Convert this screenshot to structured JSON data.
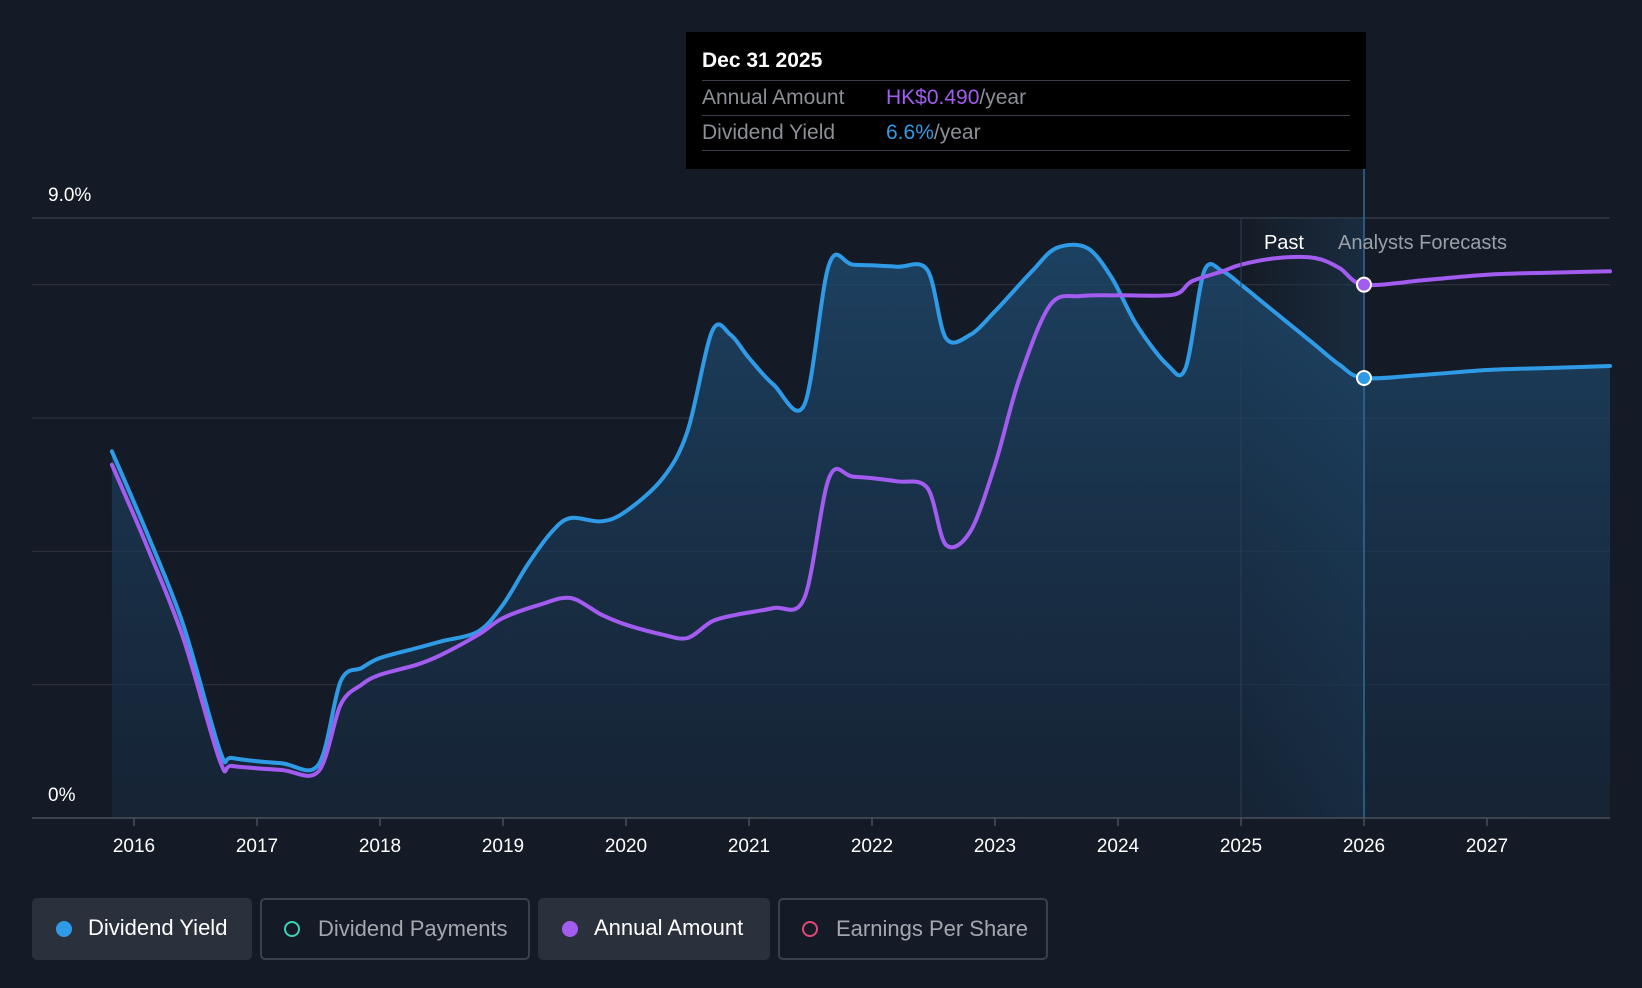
{
  "tooltip": {
    "date": "Dec 31 2025",
    "rows": [
      {
        "label": "Annual Amount",
        "value": "HK$0.490",
        "unit": "/year"
      },
      {
        "label": "Dividend Yield",
        "value": "6.6%",
        "unit": "/year"
      }
    ]
  },
  "legend": [
    {
      "label": "Dividend Yield",
      "color": "#2f9be6",
      "active": true
    },
    {
      "label": "Dividend Payments",
      "color": "#3fd1b8",
      "active": false
    },
    {
      "label": "Annual Amount",
      "color": "#a35cf0",
      "active": true
    },
    {
      "label": "Earnings Per Share",
      "color": "#e0487a",
      "active": false
    }
  ],
  "colors": {
    "background": "#151b26",
    "yield": "#2f9be6",
    "annual_amount": "#a35cf0",
    "grid": "#2c323d"
  },
  "chart_data": {
    "type": "line",
    "y_tick_labels": [
      "9.0%",
      "0%"
    ],
    "ylim": [
      0,
      9.0
    ],
    "y_gridlines": [
      0,
      2,
      4,
      6,
      8,
      9
    ],
    "x_tick_labels": [
      "2016",
      "2017",
      "2018",
      "2019",
      "2020",
      "2021",
      "2022",
      "2023",
      "2024",
      "2025",
      "2026",
      "2027"
    ],
    "xlim": [
      2015.3,
      2028.0
    ],
    "region_labels": {
      "past": "Past",
      "forecast": "Analysts Forecasts"
    },
    "forecast_start": 2026.0,
    "highlight_date": 2026.0,
    "grid": true,
    "series": [
      {
        "name": "Dividend Yield",
        "unit": "%",
        "points": [
          [
            2015.82,
            5.5
          ],
          [
            2016.1,
            4.3
          ],
          [
            2016.4,
            2.9
          ],
          [
            2016.7,
            1.0
          ],
          [
            2016.8,
            0.9
          ],
          [
            2017.2,
            0.82
          ],
          [
            2017.5,
            0.8
          ],
          [
            2017.68,
            2.05
          ],
          [
            2017.85,
            2.25
          ],
          [
            2018.0,
            2.4
          ],
          [
            2018.3,
            2.55
          ],
          [
            2018.5,
            2.65
          ],
          [
            2018.8,
            2.8
          ],
          [
            2019.0,
            3.2
          ],
          [
            2019.2,
            3.8
          ],
          [
            2019.4,
            4.3
          ],
          [
            2019.55,
            4.5
          ],
          [
            2019.8,
            4.45
          ],
          [
            2020.0,
            4.6
          ],
          [
            2020.3,
            5.1
          ],
          [
            2020.5,
            5.8
          ],
          [
            2020.7,
            7.3
          ],
          [
            2020.85,
            7.25
          ],
          [
            2021.0,
            6.9
          ],
          [
            2021.2,
            6.5
          ],
          [
            2021.45,
            6.2
          ],
          [
            2021.65,
            8.3
          ],
          [
            2021.85,
            8.3
          ],
          [
            2022.2,
            8.27
          ],
          [
            2022.45,
            8.22
          ],
          [
            2022.6,
            7.2
          ],
          [
            2022.8,
            7.25
          ],
          [
            2023.0,
            7.6
          ],
          [
            2023.3,
            8.2
          ],
          [
            2023.5,
            8.55
          ],
          [
            2023.75,
            8.55
          ],
          [
            2023.95,
            8.1
          ],
          [
            2024.15,
            7.4
          ],
          [
            2024.4,
            6.8
          ],
          [
            2024.55,
            6.75
          ],
          [
            2024.7,
            8.2
          ],
          [
            2024.85,
            8.2
          ],
          [
            2025.0,
            8.0
          ],
          [
            2025.2,
            7.7
          ],
          [
            2025.4,
            7.4
          ],
          [
            2025.6,
            7.1
          ],
          [
            2025.8,
            6.8
          ],
          [
            2026.0,
            6.6
          ],
          [
            2026.5,
            6.65
          ],
          [
            2027.0,
            6.72
          ],
          [
            2027.5,
            6.75
          ],
          [
            2028.0,
            6.78
          ]
        ]
      },
      {
        "name": "Annual Amount",
        "unit": "HK$",
        "points": [
          [
            2015.82,
            5.3
          ],
          [
            2016.1,
            4.1
          ],
          [
            2016.4,
            2.7
          ],
          [
            2016.7,
            0.85
          ],
          [
            2016.8,
            0.78
          ],
          [
            2017.2,
            0.72
          ],
          [
            2017.5,
            0.7
          ],
          [
            2017.68,
            1.7
          ],
          [
            2017.85,
            2.0
          ],
          [
            2018.0,
            2.15
          ],
          [
            2018.3,
            2.3
          ],
          [
            2018.5,
            2.45
          ],
          [
            2018.8,
            2.75
          ],
          [
            2019.0,
            3.0
          ],
          [
            2019.3,
            3.2
          ],
          [
            2019.55,
            3.3
          ],
          [
            2019.8,
            3.05
          ],
          [
            2020.0,
            2.9
          ],
          [
            2020.3,
            2.75
          ],
          [
            2020.5,
            2.7
          ],
          [
            2020.7,
            2.95
          ],
          [
            2020.9,
            3.05
          ],
          [
            2021.2,
            3.15
          ],
          [
            2021.45,
            3.3
          ],
          [
            2021.65,
            5.1
          ],
          [
            2021.85,
            5.12
          ],
          [
            2022.2,
            5.05
          ],
          [
            2022.45,
            4.95
          ],
          [
            2022.6,
            4.1
          ],
          [
            2022.8,
            4.3
          ],
          [
            2023.0,
            5.3
          ],
          [
            2023.2,
            6.6
          ],
          [
            2023.45,
            7.7
          ],
          [
            2023.7,
            7.83
          ],
          [
            2024.0,
            7.84
          ],
          [
            2024.45,
            7.85
          ],
          [
            2024.6,
            8.05
          ],
          [
            2024.85,
            8.2
          ],
          [
            2025.0,
            8.3
          ],
          [
            2025.3,
            8.4
          ],
          [
            2025.6,
            8.4
          ],
          [
            2025.8,
            8.25
          ],
          [
            2026.0,
            8.0
          ],
          [
            2026.5,
            8.07
          ],
          [
            2027.0,
            8.15
          ],
          [
            2027.5,
            8.18
          ],
          [
            2028.0,
            8.2
          ]
        ]
      }
    ]
  }
}
